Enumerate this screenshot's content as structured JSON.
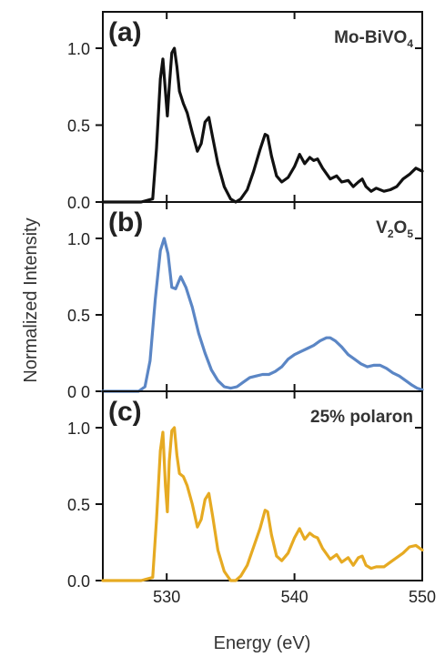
{
  "figure": {
    "xlabel": "Energy (eV)",
    "ylabel": "Normalized Intensity"
  },
  "chart_data": [
    {
      "type": "line",
      "panel": "(a)",
      "label": "Mo-BiVO",
      "label_subscript": "4",
      "color": "#111111",
      "xlabel": "Energy (eV)",
      "ylabel": "Normalized Intensity",
      "xlim": [
        525,
        550
      ],
      "ylim": [
        0,
        1.1
      ],
      "x_ticks": [
        530,
        540,
        550
      ],
      "y_ticks": [
        0.0,
        0.5,
        1.0
      ],
      "y_tick_labels": [
        "0.0",
        "0.5",
        "1.0"
      ],
      "grid": false,
      "x": [
        525,
        528,
        528.9,
        529.2,
        529.5,
        529.7,
        529.9,
        530.05,
        530.2,
        530.4,
        530.6,
        530.8,
        531.0,
        531.3,
        531.6,
        532.0,
        532.4,
        532.7,
        533.0,
        533.3,
        533.6,
        534.0,
        534.5,
        535.0,
        535.4,
        535.8,
        536.3,
        536.8,
        537.3,
        537.7,
        537.9,
        538.2,
        538.6,
        539.0,
        539.5,
        540.0,
        540.4,
        540.8,
        541.2,
        541.5,
        541.8,
        542.2,
        542.8,
        543.3,
        543.7,
        544.2,
        544.6,
        545.0,
        545.3,
        545.6,
        546.0,
        546.4,
        547.0,
        547.5,
        548.0,
        548.5,
        549.0,
        549.5,
        550.0
      ],
      "y": [
        0.0,
        0.0,
        0.02,
        0.35,
        0.8,
        0.93,
        0.72,
        0.56,
        0.75,
        0.97,
        1.0,
        0.88,
        0.72,
        0.64,
        0.58,
        0.45,
        0.33,
        0.38,
        0.52,
        0.55,
        0.42,
        0.25,
        0.1,
        0.02,
        0.0,
        0.02,
        0.08,
        0.2,
        0.34,
        0.44,
        0.43,
        0.3,
        0.17,
        0.13,
        0.16,
        0.23,
        0.31,
        0.25,
        0.29,
        0.27,
        0.28,
        0.22,
        0.15,
        0.17,
        0.13,
        0.14,
        0.1,
        0.13,
        0.15,
        0.1,
        0.07,
        0.09,
        0.07,
        0.08,
        0.1,
        0.15,
        0.18,
        0.22,
        0.2
      ]
    },
    {
      "type": "line",
      "panel": "(b)",
      "label": "V",
      "label_subscript": "2",
      "label_mid": "O",
      "label_subscript2": "5",
      "color": "#5b86c5",
      "xlabel": "Energy (eV)",
      "ylabel": "Normalized Intensity",
      "xlim": [
        525,
        550
      ],
      "ylim": [
        0,
        1.1
      ],
      "x_ticks": [
        530,
        540,
        550
      ],
      "y_ticks": [
        0.0,
        0.5,
        1.0
      ],
      "y_tick_labels": [
        "0 0",
        "0.5",
        "1.0"
      ],
      "grid": false,
      "x": [
        525,
        527.8,
        528.3,
        528.7,
        529.1,
        529.5,
        529.8,
        530.1,
        530.4,
        530.7,
        531.1,
        531.5,
        532.0,
        532.5,
        533.0,
        533.5,
        534.0,
        534.5,
        535.0,
        535.5,
        536.0,
        536.5,
        537.0,
        537.5,
        538.0,
        538.5,
        539.0,
        539.5,
        540.0,
        540.5,
        541.0,
        541.5,
        542.0,
        542.5,
        542.8,
        543.2,
        543.7,
        544.2,
        544.7,
        545.2,
        545.7,
        546.2,
        546.7,
        547.2,
        547.7,
        548.2,
        548.7,
        549.2,
        549.6,
        550.0
      ],
      "y": [
        0.0,
        0.0,
        0.03,
        0.2,
        0.6,
        0.92,
        1.0,
        0.9,
        0.68,
        0.67,
        0.75,
        0.68,
        0.55,
        0.38,
        0.25,
        0.14,
        0.07,
        0.03,
        0.02,
        0.03,
        0.06,
        0.09,
        0.1,
        0.11,
        0.11,
        0.13,
        0.16,
        0.21,
        0.24,
        0.26,
        0.28,
        0.3,
        0.33,
        0.35,
        0.35,
        0.33,
        0.29,
        0.24,
        0.21,
        0.18,
        0.16,
        0.17,
        0.17,
        0.15,
        0.12,
        0.1,
        0.07,
        0.04,
        0.02,
        0.01
      ]
    },
    {
      "type": "line",
      "panel": "(c)",
      "label": "25% polaron",
      "label_subscript": "",
      "color": "#e6aa22",
      "xlabel": "Energy (eV)",
      "ylabel": "Normalized Intensity",
      "xlim": [
        525,
        550
      ],
      "ylim": [
        0,
        1.1
      ],
      "x_ticks": [
        530,
        540,
        550
      ],
      "x_tick_labels": [
        "530",
        "540",
        "550"
      ],
      "y_ticks": [
        0.0,
        0.5,
        1.0
      ],
      "y_tick_labels": [
        "0.0",
        "0.5",
        "1.0"
      ],
      "grid": false,
      "x": [
        525,
        528,
        528.9,
        529.2,
        529.5,
        529.7,
        529.9,
        530.05,
        530.2,
        530.4,
        530.6,
        530.8,
        531.0,
        531.3,
        531.6,
        532.0,
        532.4,
        532.7,
        533.0,
        533.3,
        533.6,
        534.0,
        534.5,
        535.0,
        535.4,
        535.8,
        536.3,
        536.8,
        537.3,
        537.7,
        537.9,
        538.2,
        538.6,
        539.0,
        539.5,
        540.0,
        540.4,
        540.8,
        541.2,
        541.5,
        541.8,
        542.2,
        542.8,
        543.3,
        543.7,
        544.2,
        544.6,
        545.0,
        545.3,
        545.6,
        546.0,
        546.4,
        547.0,
        547.5,
        548.0,
        548.5,
        549.0,
        549.5,
        550.0
      ],
      "y": [
        0.0,
        0.0,
        0.02,
        0.4,
        0.85,
        0.97,
        0.62,
        0.45,
        0.78,
        0.98,
        1.0,
        0.82,
        0.7,
        0.68,
        0.62,
        0.5,
        0.35,
        0.4,
        0.53,
        0.57,
        0.42,
        0.2,
        0.06,
        0.0,
        0.0,
        0.03,
        0.1,
        0.22,
        0.34,
        0.46,
        0.45,
        0.3,
        0.16,
        0.13,
        0.18,
        0.28,
        0.34,
        0.27,
        0.31,
        0.29,
        0.28,
        0.21,
        0.14,
        0.17,
        0.12,
        0.15,
        0.1,
        0.15,
        0.16,
        0.1,
        0.08,
        0.09,
        0.09,
        0.12,
        0.15,
        0.18,
        0.22,
        0.23,
        0.2
      ]
    }
  ]
}
